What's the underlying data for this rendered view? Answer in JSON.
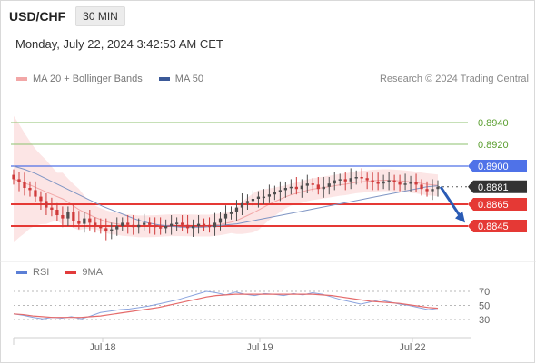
{
  "header": {
    "pair": "USD/CHF",
    "timeframe": "30 MIN",
    "datetime": "Monday, July 22, 2024 3:42:53 AM CET",
    "copyright": "Research © 2024 Trading Central"
  },
  "legend": {
    "ma_bb": "MA 20 + Bollinger Bands",
    "ma50": "MA 50",
    "rsi": "RSI",
    "ma9": "9MA"
  },
  "colors": {
    "ma_bb": "#f2a7a7",
    "ma50": "#3b5998",
    "rsi": "#5b7fd6",
    "ma9": "#e23b3b",
    "resistance_green": "#8dc26f",
    "blue_level": "#4f72e8",
    "red_level": "#e53935",
    "current_badge": "#333333",
    "arrow": "#2a5bb5"
  },
  "chart_data": [
    {
      "type": "candlestick",
      "title": "USD/CHF 30 MIN",
      "x_ticks": [
        "Jul 18",
        "Jul 19",
        "Jul 22"
      ],
      "price_levels": [
        {
          "value": 0.894,
          "label": "0.8940",
          "kind": "target"
        },
        {
          "value": 0.892,
          "label": "0.8920",
          "kind": "target"
        },
        {
          "value": 0.89,
          "label": "0.8900",
          "kind": "pivot"
        },
        {
          "value": 0.8881,
          "label": "0.8881",
          "kind": "last"
        },
        {
          "value": 0.8865,
          "label": "0.8865",
          "kind": "support"
        },
        {
          "value": 0.8845,
          "label": "0.8845",
          "kind": "support"
        }
      ],
      "close": [
        0.8888,
        0.8885,
        0.888,
        0.8878,
        0.8872,
        0.8868,
        0.8862,
        0.886,
        0.8855,
        0.8852,
        0.8858,
        0.885,
        0.8847,
        0.8852,
        0.8848,
        0.8845,
        0.8843,
        0.884,
        0.8842,
        0.8845,
        0.8848,
        0.8846,
        0.8844,
        0.8846,
        0.8848,
        0.8846,
        0.8844,
        0.8843,
        0.8845,
        0.8847,
        0.8848,
        0.8846,
        0.8843,
        0.8845,
        0.8847,
        0.8846,
        0.8844,
        0.8848,
        0.8852,
        0.8856,
        0.8858,
        0.8862,
        0.8866,
        0.8868,
        0.887,
        0.8872,
        0.8872,
        0.8874,
        0.8876,
        0.8878,
        0.888,
        0.8881,
        0.8879,
        0.8882,
        0.8884,
        0.8883,
        0.8879,
        0.8881,
        0.8884,
        0.8887,
        0.8888,
        0.8886,
        0.8889,
        0.889,
        0.8889,
        0.8887,
        0.8885,
        0.8884,
        0.8886,
        0.8887,
        0.8885,
        0.8883,
        0.8884,
        0.8885,
        0.8883,
        0.8879,
        0.8877,
        0.8879,
        0.8881
      ],
      "ma50": [
        0.89,
        0.8897,
        0.8893,
        0.8888,
        0.8883,
        0.8878,
        0.8873,
        0.8868,
        0.8863,
        0.8859,
        0.8855,
        0.8851,
        0.8848,
        0.8846,
        0.8845,
        0.8844,
        0.8844,
        0.8844,
        0.8845,
        0.8846,
        0.8847,
        0.8849,
        0.8851,
        0.8853,
        0.8855,
        0.8857,
        0.8859,
        0.8861,
        0.8863,
        0.8865,
        0.8867,
        0.8869,
        0.8871,
        0.8873,
        0.8875,
        0.8877,
        0.8879,
        0.8881,
        0.8882
      ],
      "rsi": {
        "levels": [
          70,
          50,
          30
        ],
        "rsi": [
          38,
          36,
          33,
          31,
          33,
          32,
          34,
          31,
          35,
          40,
          42,
          44,
          45,
          47,
          49,
          52,
          55,
          58,
          62,
          66,
          70,
          68,
          65,
          69,
          66,
          64,
          67,
          66,
          64,
          67,
          65,
          68,
          66,
          62,
          58,
          55,
          52,
          55,
          58,
          55,
          52,
          50,
          47,
          44,
          46
        ],
        "ma9": [
          38,
          37,
          35,
          34,
          33,
          33,
          33,
          33,
          34,
          35,
          37,
          39,
          41,
          43,
          45,
          47,
          50,
          53,
          56,
          59,
          62,
          64,
          65,
          66,
          66,
          66,
          66,
          66,
          66,
          66,
          66,
          66,
          65,
          64,
          62,
          60,
          58,
          56,
          55,
          54,
          53,
          51,
          49,
          47,
          46
        ]
      }
    }
  ]
}
